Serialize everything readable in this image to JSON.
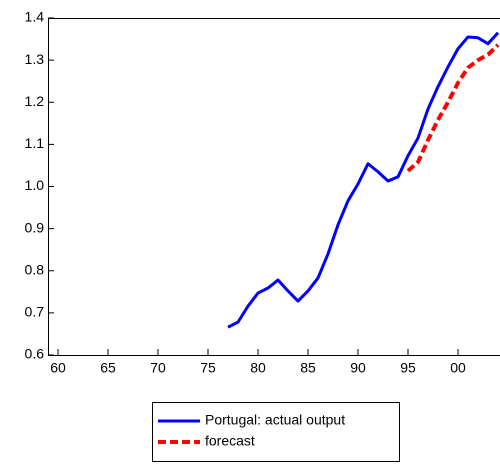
{
  "chart_data": {
    "type": "line",
    "x": [
      1977,
      1978,
      1979,
      1980,
      1981,
      1982,
      1983,
      1984,
      1985,
      1986,
      1987,
      1988,
      1989,
      1990,
      1991,
      1992,
      1993,
      1994,
      1995,
      1996,
      1997,
      1998,
      1999,
      2000,
      2001,
      2002,
      2003,
      2004
    ],
    "series": [
      {
        "name": "Portugal: actual output",
        "color": "#0000ff",
        "dash": false,
        "values": [
          0.666,
          0.678,
          0.716,
          0.747,
          0.759,
          0.778,
          0.752,
          0.728,
          0.752,
          0.783,
          0.84,
          0.909,
          0.966,
          1.006,
          1.054,
          1.035,
          1.013,
          1.023,
          1.073,
          1.115,
          1.184,
          1.237,
          1.284,
          1.327,
          1.355,
          1.353,
          1.339,
          1.365
        ]
      },
      {
        "name": "forecast",
        "color": "#ff0000",
        "dash": true,
        "values": [
          null,
          null,
          null,
          null,
          null,
          null,
          null,
          null,
          null,
          null,
          null,
          null,
          null,
          null,
          null,
          null,
          null,
          null,
          1.037,
          1.058,
          1.11,
          1.158,
          1.2,
          1.246,
          1.282,
          1.3,
          1.313,
          1.336
        ]
      }
    ],
    "xlim": [
      1959,
      2004
    ],
    "xticks": [
      {
        "value": 1960,
        "label": "60"
      },
      {
        "value": 1965,
        "label": "65"
      },
      {
        "value": 1970,
        "label": "70"
      },
      {
        "value": 1975,
        "label": "75"
      },
      {
        "value": 1980,
        "label": "80"
      },
      {
        "value": 1985,
        "label": "85"
      },
      {
        "value": 1990,
        "label": "90"
      },
      {
        "value": 1995,
        "label": "95"
      },
      {
        "value": 2000,
        "label": "00"
      }
    ],
    "ylim": [
      0.6,
      1.4
    ],
    "yticks": [
      0.6,
      0.7,
      0.8,
      0.9,
      {
        "value": 1,
        "label": "1.0"
      },
      1.1,
      1.2,
      1.3,
      1.4
    ]
  }
}
